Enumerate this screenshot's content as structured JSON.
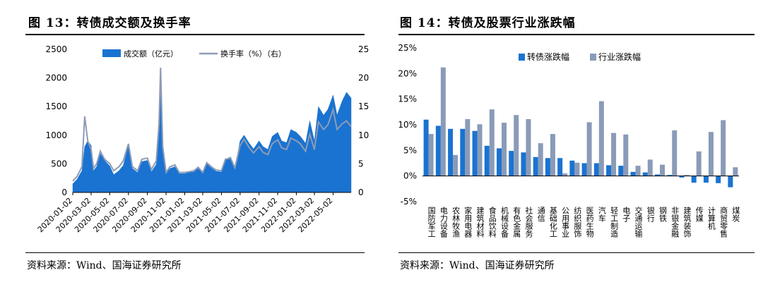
{
  "figures": {
    "left": {
      "title": "图 13：转债成交额及换手率",
      "source": "资料来源：Wind、国海证券研究所"
    },
    "right": {
      "title": "图 14：转债及股票行业涨跌幅",
      "source": "资料来源：Wind、国海证券研究所"
    }
  },
  "chart_data": [
    {
      "type": "area",
      "title": "",
      "xlabel": "",
      "ylabel": "",
      "y_left_lim": [
        0,
        2500
      ],
      "y_left_ticks": [
        0,
        500,
        1000,
        1500,
        2000,
        2500
      ],
      "y_right_lim": [
        0,
        25
      ],
      "y_right_ticks": [
        0,
        5,
        10,
        15,
        20,
        25
      ],
      "x_tick_labels": [
        "2020-01-02",
        "2020-03-02",
        "2020-05-02",
        "2020-07-02",
        "2020-09-02",
        "2020-11-02",
        "2021-01-02",
        "2021-03-02",
        "2021-05-02",
        "2021-07-02",
        "2021-09-02",
        "2021-11-02",
        "2022-01-02",
        "2022-03-02",
        "2022-05-02"
      ],
      "legend_position": "top",
      "colors": {
        "amount": "#1a73d1",
        "turnover": "#8e9bb5"
      },
      "series": [
        {
          "name": "成交额（亿元）",
          "axis": "left",
          "kind": "area",
          "x": [
            "2020-01-02",
            "2020-01-16",
            "2020-02-01",
            "2020-02-10",
            "2020-02-20",
            "2020-03-02",
            "2020-03-10",
            "2020-03-20",
            "2020-04-01",
            "2020-04-15",
            "2020-05-02",
            "2020-05-15",
            "2020-06-01",
            "2020-06-15",
            "2020-07-02",
            "2020-07-15",
            "2020-08-01",
            "2020-08-15",
            "2020-09-02",
            "2020-09-15",
            "2020-10-01",
            "2020-10-10",
            "2020-10-15",
            "2020-10-22",
            "2020-11-02",
            "2020-11-15",
            "2020-12-01",
            "2020-12-15",
            "2021-01-02",
            "2021-01-15",
            "2021-02-01",
            "2021-02-15",
            "2021-03-02",
            "2021-03-15",
            "2021-04-01",
            "2021-04-15",
            "2021-05-02",
            "2021-05-15",
            "2021-06-01",
            "2021-06-15",
            "2021-07-02",
            "2021-07-15",
            "2021-08-01",
            "2021-08-15",
            "2021-09-02",
            "2021-09-15",
            "2021-10-01",
            "2021-10-15",
            "2021-11-02",
            "2021-11-15",
            "2021-12-01",
            "2021-12-15",
            "2022-01-02",
            "2022-01-15",
            "2022-02-01",
            "2022-02-15",
            "2022-03-02",
            "2022-03-15",
            "2022-04-01",
            "2022-04-15",
            "2022-05-02",
            "2022-05-15",
            "2022-06-01",
            "2022-06-15",
            "2022-06-30"
          ],
          "values": [
            150,
            230,
            380,
            800,
            900,
            820,
            380,
            450,
            680,
            560,
            460,
            310,
            380,
            470,
            820,
            420,
            350,
            540,
            560,
            360,
            490,
            1100,
            2150,
            750,
            330,
            420,
            450,
            330,
            330,
            350,
            360,
            420,
            330,
            500,
            420,
            370,
            360,
            580,
            620,
            420,
            900,
            1000,
            860,
            760,
            900,
            800,
            750,
            980,
            1050,
            900,
            870,
            1100,
            1050,
            980,
            860,
            1250,
            900,
            1500,
            1350,
            1450,
            1700,
            1350,
            1600,
            1750,
            1650
          ]
        },
        {
          "name": "换手率（%）（右）",
          "axis": "right",
          "kind": "line",
          "x": [
            "2020-01-02",
            "2020-01-16",
            "2020-02-01",
            "2020-02-10",
            "2020-02-20",
            "2020-03-02",
            "2020-03-10",
            "2020-03-20",
            "2020-04-01",
            "2020-04-15",
            "2020-05-02",
            "2020-05-15",
            "2020-06-01",
            "2020-06-15",
            "2020-07-02",
            "2020-07-15",
            "2020-08-01",
            "2020-08-15",
            "2020-09-02",
            "2020-09-15",
            "2020-10-01",
            "2020-10-10",
            "2020-10-15",
            "2020-10-22",
            "2020-11-02",
            "2020-11-15",
            "2020-12-01",
            "2020-12-15",
            "2021-01-02",
            "2021-01-15",
            "2021-02-01",
            "2021-02-15",
            "2021-03-02",
            "2021-03-15",
            "2021-04-01",
            "2021-04-15",
            "2021-05-02",
            "2021-05-15",
            "2021-06-01",
            "2021-06-15",
            "2021-07-02",
            "2021-07-15",
            "2021-08-01",
            "2021-08-15",
            "2021-09-02",
            "2021-09-15",
            "2021-10-01",
            "2021-10-15",
            "2021-11-02",
            "2021-11-15",
            "2021-12-01",
            "2021-12-15",
            "2022-01-02",
            "2022-01-15",
            "2022-02-01",
            "2022-02-15",
            "2022-03-02",
            "2022-03-15",
            "2022-04-01",
            "2022-04-15",
            "2022-05-02",
            "2022-05-15",
            "2022-06-01",
            "2022-06-15",
            "2022-06-30"
          ],
          "values": [
            2.0,
            2.8,
            4.5,
            13.3,
            9.0,
            7.5,
            4.2,
            5.0,
            7.2,
            5.8,
            5.0,
            3.8,
            4.5,
            5.5,
            8.5,
            4.5,
            3.8,
            5.8,
            6.0,
            4.0,
            5.5,
            12.0,
            21.8,
            8.0,
            3.5,
            4.5,
            4.8,
            3.5,
            3.5,
            3.6,
            3.8,
            4.4,
            3.5,
            5.2,
            4.4,
            3.9,
            3.8,
            5.8,
            6.0,
            4.3,
            8.2,
            9.3,
            7.8,
            6.9,
            8.0,
            7.0,
            6.6,
            8.5,
            9.2,
            7.8,
            7.5,
            9.5,
            9.0,
            8.5,
            7.2,
            10.2,
            7.5,
            12.3,
            11.0,
            11.8,
            14.5,
            11.0,
            12.0,
            12.5,
            11.5
          ]
        }
      ]
    },
    {
      "type": "bar",
      "title": "",
      "xlabel": "",
      "ylabel": "",
      "ylim": [
        -5,
        25
      ],
      "y_ticks": [
        -5,
        0,
        5,
        10,
        15,
        20,
        25
      ],
      "y_tick_labels": [
        "-5%",
        "0%",
        "5%",
        "10%",
        "15%",
        "20%",
        "25%"
      ],
      "legend_position": "top",
      "colors": {
        "cb": "#1a73d1",
        "industry": "#8a9bb8"
      },
      "categories": [
        "国防军工",
        "电力设备",
        "农林牧渔",
        "家用电器",
        "建筑材料",
        "食品饮料",
        "机械设备",
        "有色金属",
        "社会服务",
        "通信",
        "基础化工",
        "公用事业",
        "纺织服饰",
        "医药生物",
        "汽车",
        "轻工制造",
        "电子",
        "交通运输",
        "银行",
        "钢铁",
        "非银金融",
        "建筑装饰",
        "传媒",
        "计算机",
        "商贸零售",
        "煤炭"
      ],
      "series": [
        {
          "name": "转债涨跌幅",
          "values": [
            11.0,
            9.8,
            9.2,
            9.2,
            8.8,
            5.9,
            5.4,
            4.9,
            4.6,
            3.7,
            3.5,
            3.5,
            3.0,
            2.5,
            2.5,
            2.1,
            2.0,
            0.8,
            0.7,
            0.3,
            0.2,
            -0.3,
            -1.3,
            -1.3,
            -1.4,
            -2.2
          ]
        },
        {
          "name": "行业涨跌幅",
          "values": [
            8.2,
            21.2,
            4.1,
            11.1,
            10.1,
            13.0,
            10.4,
            11.9,
            11.1,
            6.4,
            8.2,
            0.5,
            2.6,
            10.5,
            14.6,
            8.4,
            8.1,
            2.0,
            3.2,
            2.2,
            8.9,
            0.2,
            4.8,
            8.6,
            10.9,
            1.7
          ]
        }
      ]
    }
  ]
}
